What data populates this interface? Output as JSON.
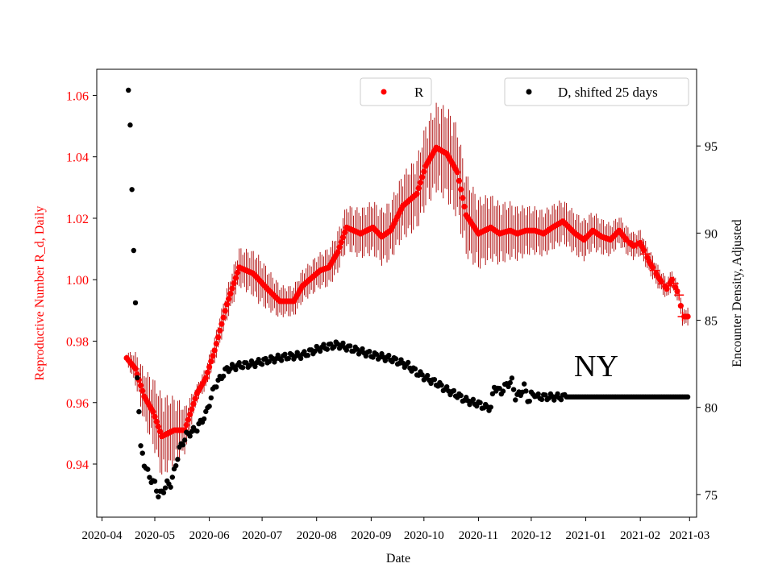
{
  "chart_data": {
    "type": "scatter",
    "title": "",
    "annotation": "NY",
    "xlabel": "Date",
    "ylabel_left": "Reproductive Number R_d, Daily",
    "ylabel_right": "Encounter Density, Adjusted",
    "colors": {
      "r": "#ff0000",
      "r_err": "#aa0000",
      "left_axis": "#ff0000",
      "d": "#000000"
    },
    "x_start": "2020-04-15",
    "x_end": "2021-02-28",
    "x_ticks": [
      "2020-04",
      "2020-05",
      "2020-06",
      "2020-07",
      "2020-08",
      "2020-09",
      "2020-10",
      "2020-11",
      "2020-12",
      "2021-01",
      "2021-02",
      "2021-03"
    ],
    "x_tick_days": [
      -14,
      16,
      47,
      77,
      108,
      139,
      169,
      200,
      230,
      261,
      292,
      320
    ],
    "xlim_days": [
      -17,
      324
    ],
    "ylim_left": [
      0.9227,
      1.0685
    ],
    "yticks_left": [
      "0.94",
      "0.96",
      "0.98",
      "1.00",
      "1.02",
      "1.04",
      "1.06"
    ],
    "ylim_right": [
      73.7,
      99.4
    ],
    "yticks_right": [
      "75",
      "80",
      "85",
      "90",
      "95"
    ],
    "legend": [
      {
        "label": "R",
        "color": "#ff0000"
      },
      {
        "label": "D, shifted 25 days",
        "color": "#000000"
      }
    ],
    "series_r": {
      "name": "R",
      "knots_day": [
        0,
        5,
        10,
        15,
        20,
        27,
        33,
        40,
        45,
        50,
        57,
        64,
        72,
        80,
        87,
        95,
        100,
        110,
        115,
        120,
        125,
        133,
        140,
        145,
        150,
        157,
        165,
        170,
        176,
        182,
        188,
        193,
        200,
        207,
        212,
        218,
        222,
        227,
        232,
        237,
        242,
        248,
        255,
        260,
        265,
        270,
        275,
        280,
        284,
        288,
        292,
        297,
        302,
        307,
        310,
        314,
        316
      ],
      "knots_value": [
        0.9745,
        0.971,
        0.962,
        0.957,
        0.949,
        0.951,
        0.951,
        0.963,
        0.968,
        0.977,
        0.992,
        1.004,
        1.002,
        0.997,
        0.993,
        0.993,
        0.998,
        1.003,
        1.004,
        1.009,
        1.017,
        1.015,
        1.017,
        1.014,
        1.016,
        1.024,
        1.028,
        1.037,
        1.043,
        1.041,
        1.035,
        1.021,
        1.015,
        1.017,
        1.015,
        1.016,
        1.015,
        1.016,
        1.016,
        1.015,
        1.017,
        1.019,
        1.015,
        1.013,
        1.016,
        1.014,
        1.013,
        1.016,
        1.013,
        1.011,
        1.012,
        1.006,
        1.001,
        0.997,
        1.0,
        0.995,
        0.988
      ],
      "err_knots_day": [
        0,
        10,
        20,
        30,
        40,
        60,
        75,
        90,
        110,
        130,
        150,
        165,
        170,
        185,
        200,
        230,
        260,
        280,
        300,
        316
      ],
      "err_knots_value": [
        0.002,
        0.009,
        0.014,
        0.01,
        0.003,
        0.006,
        0.008,
        0.005,
        0.006,
        0.008,
        0.01,
        0.012,
        0.014,
        0.016,
        0.012,
        0.008,
        0.007,
        0.005,
        0.004,
        0.003
      ],
      "cross_days": [
        285,
        290,
        295,
        300,
        305,
        308,
        311,
        314,
        316
      ]
    },
    "series_d": {
      "name": "D, shifted 25 days",
      "knots_day": [
        1,
        2,
        3,
        4,
        5,
        6,
        8,
        10,
        13,
        16,
        18,
        20,
        23,
        25,
        27,
        30,
        34,
        40,
        45,
        50,
        57,
        64,
        72,
        80,
        90,
        100,
        110,
        120,
        130,
        140,
        150,
        160,
        165,
        170,
        176,
        182,
        188,
        193,
        200,
        204,
        207,
        209,
        211,
        213,
        216,
        219,
        221,
        224,
        226,
        228,
        229,
        230,
        232,
        233,
        240,
        245,
        252,
        258,
        264,
        275,
        316
      ],
      "knots_value": [
        98.2,
        96.2,
        92.5,
        89.0,
        86.0,
        81.7,
        77.8,
        76.8,
        76.0,
        75.6,
        75.0,
        75.1,
        75.6,
        75.6,
        76.3,
        77.6,
        78.4,
        78.8,
        79.6,
        81.2,
        82.2,
        82.4,
        82.5,
        82.7,
        82.9,
        83.0,
        83.4,
        83.6,
        83.3,
        83.0,
        82.8,
        82.4,
        82.0,
        81.7,
        81.4,
        81.0,
        80.7,
        80.4,
        80.2,
        80.0,
        80.0,
        81.2,
        81.0,
        80.9,
        81.3,
        81.5,
        80.6,
        80.8,
        81.2,
        80.5,
        80.4,
        80.7,
        80.8,
        80.6,
        80.6,
        80.6,
        80.6,
        80.6,
        80.6,
        80.6,
        80.6
      ]
    }
  }
}
